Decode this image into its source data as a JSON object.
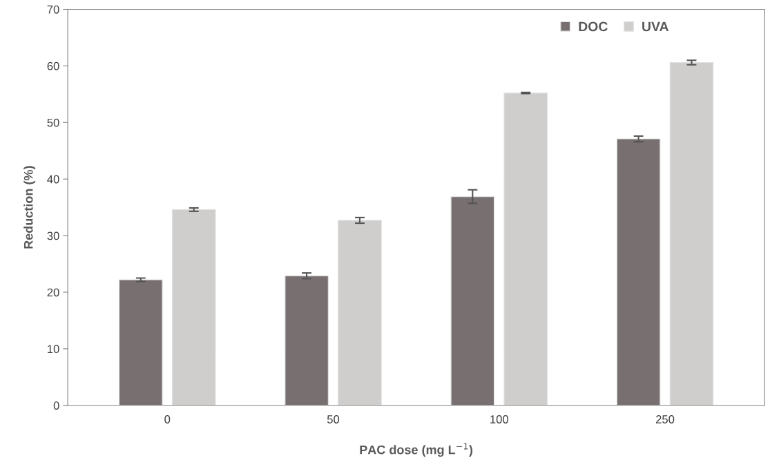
{
  "chart_data": {
    "type": "bar",
    "xlabel": "PAC dose (mg L$^{−1}$)",
    "ylabel": "Reduction (%)",
    "categories": [
      "0",
      "50",
      "100",
      "250"
    ],
    "series": [
      {
        "name": "DOC",
        "color": "#787070",
        "values": [
          22.2,
          22.9,
          36.9,
          47.1
        ],
        "errors": [
          0.3,
          0.5,
          1.2,
          0.5
        ]
      },
      {
        "name": "UVA",
        "color": "#d0cdcd",
        "values": [
          34.6,
          32.7,
          55.2,
          60.6
        ],
        "errors": [
          0.3,
          0.5,
          0.1,
          0.4
        ]
      }
    ],
    "ylim": [
      0,
      70
    ],
    "yticks": [
      0,
      10,
      20,
      30,
      40,
      50,
      60,
      70
    ],
    "grid": false,
    "legend": "top right"
  }
}
